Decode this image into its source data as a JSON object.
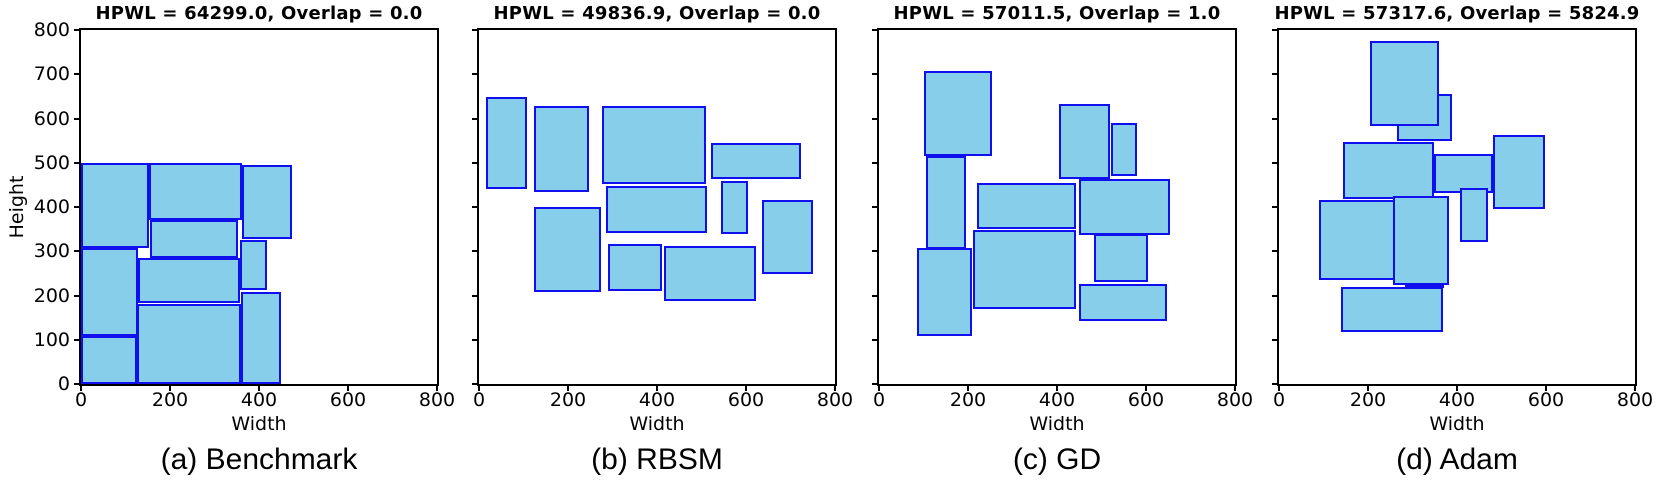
{
  "figure": {
    "background": "#ffffff",
    "block_fill_color": "#87ceeb",
    "block_edge_color": "#1010ee",
    "axis_color": "#000000"
  },
  "chart_data": {
    "type": "rect-placement",
    "description": "Four floorplanning/placement result subplots; each rectangle is a placed block given as [x, y_bottom, width, height] in data units",
    "xlabel": "Width",
    "ylabel": "Height",
    "xlim": [
      0,
      800
    ],
    "ylim": [
      0,
      800
    ],
    "xticks": [
      0,
      200,
      400,
      600,
      800
    ],
    "yticks": [
      0,
      100,
      200,
      300,
      400,
      500,
      600,
      700,
      800
    ],
    "grid": false,
    "subplots": [
      {
        "title": "HPWL = 64299.0, Overlap = 0.0",
        "caption": "(a) Benchmark",
        "hpwl": 64299.0,
        "overlap": 0.0,
        "show_y_labels": true,
        "rects": [
          [
            0,
            307,
            152,
            192
          ],
          [
            152,
            371,
            210,
            128
          ],
          [
            362,
            328,
            112,
            168
          ],
          [
            156,
            285,
            198,
            86
          ],
          [
            0,
            108,
            128,
            199
          ],
          [
            128,
            182,
            230,
            103
          ],
          [
            358,
            213,
            60,
            112
          ],
          [
            0,
            0,
            126,
            108
          ],
          [
            126,
            0,
            234,
            182
          ],
          [
            360,
            0,
            90,
            209
          ]
        ]
      },
      {
        "title": "HPWL = 49836.9, Overlap = 0.0",
        "caption": "(b) RBSM",
        "hpwl": 49836.9,
        "overlap": 0.0,
        "show_y_labels": false,
        "rects": [
          [
            16,
            441,
            91,
            208
          ],
          [
            123,
            433,
            124,
            196
          ],
          [
            277,
            452,
            234,
            176
          ],
          [
            521,
            463,
            202,
            82
          ],
          [
            285,
            342,
            227,
            106
          ],
          [
            543,
            338,
            61,
            120
          ],
          [
            635,
            249,
            116,
            168
          ],
          [
            124,
            209,
            151,
            192
          ],
          [
            290,
            209,
            122,
            107
          ],
          [
            415,
            187,
            208,
            126
          ]
        ]
      },
      {
        "title": "HPWL = 57011.5, Overlap = 1.0",
        "caption": "(c) GD",
        "hpwl": 57011.5,
        "overlap": 1.0,
        "show_y_labels": false,
        "rects": [
          [
            100,
            516,
            153,
            191
          ],
          [
            106,
            305,
            90,
            211
          ],
          [
            405,
            463,
            114,
            170
          ],
          [
            521,
            469,
            60,
            121
          ],
          [
            221,
            350,
            223,
            104
          ],
          [
            450,
            337,
            204,
            126
          ],
          [
            212,
            169,
            232,
            180
          ],
          [
            482,
            230,
            122,
            108
          ],
          [
            450,
            143,
            197,
            84
          ],
          [
            86,
            108,
            124,
            199
          ]
        ]
      },
      {
        "title": "HPWL = 57317.6, Overlap = 5824.9",
        "caption": "(d) Adam",
        "hpwl": 57317.6,
        "overlap": 5824.9,
        "show_y_labels": false,
        "rects": [
          [
            265,
            548,
            125,
            107
          ],
          [
            204,
            582,
            156,
            194
          ],
          [
            144,
            418,
            204,
            130
          ],
          [
            348,
            432,
            133,
            88
          ],
          [
            481,
            395,
            116,
            168
          ],
          [
            406,
            322,
            64,
            121
          ],
          [
            90,
            235,
            170,
            181
          ],
          [
            256,
            224,
            126,
            201
          ],
          [
            139,
            117,
            230,
            102
          ],
          [
            282,
            219,
            89,
            8
          ]
        ]
      }
    ]
  }
}
